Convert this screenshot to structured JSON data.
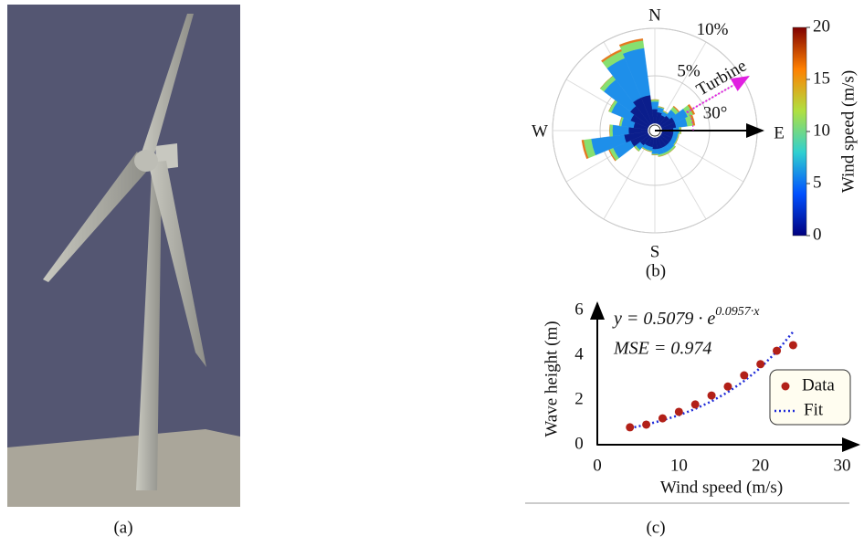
{
  "panel_labels": [
    "(a)",
    "(b)",
    "(c)"
  ],
  "chart_data": [
    {
      "type": "wind-rose",
      "compass": [
        "N",
        "E",
        "S",
        "W"
      ],
      "direction_degrees": [
        0,
        15,
        30,
        45,
        60,
        75,
        90,
        105,
        120,
        135,
        150,
        165,
        180,
        195,
        210,
        225,
        240,
        255,
        270,
        285,
        300,
        315,
        330,
        345
      ],
      "rlim": [
        0,
        10
      ],
      "rticks": [
        {
          "value": 5,
          "label": "5%"
        },
        {
          "value": 10,
          "label": "10%"
        }
      ],
      "series": [
        {
          "color": "#0b1e8c",
          "values": [
            1.5,
            1.2,
            1.0,
            1.2,
            1.5,
            1.5,
            1.2,
            1.2,
            1.2,
            1.2,
            1.2,
            1.2,
            1.2,
            1.0,
            1.0,
            1.2,
            2.0,
            2.5,
            2.0,
            1.5,
            2.0,
            2.5,
            3.0,
            3.0
          ]
        },
        {
          "color": "#1e8fea",
          "values": [
            0.8,
            0.5,
            0.4,
            0.8,
            1.5,
            1.2,
            0.6,
            0.5,
            0.5,
            0.6,
            0.6,
            0.6,
            0.5,
            0.4,
            0.4,
            0.6,
            2.0,
            3.5,
            1.7,
            1.3,
            2.2,
            3.5,
            4.5,
            5.0
          ]
        },
        {
          "color": "#86e070",
          "values": [
            0.2,
            0.1,
            0.1,
            0.4,
            0.6,
            0.6,
            0.2,
            0.1,
            0.1,
            0.2,
            0.2,
            0.2,
            0.1,
            0.1,
            0.1,
            0.2,
            0.4,
            0.8,
            0.3,
            0.2,
            0.3,
            0.5,
            0.8,
            0.8
          ]
        },
        {
          "color": "#e4781e",
          "values": [
            0,
            0,
            0,
            0.1,
            0.2,
            0.2,
            0,
            0,
            0,
            0,
            0,
            0,
            0,
            0,
            0,
            0,
            0.1,
            0.2,
            0,
            0,
            0,
            0,
            0.2,
            0.2
          ]
        }
      ],
      "turbine_label": "Turbine",
      "turbine_angle": {
        "value": 30,
        "label": "30°"
      },
      "colorbar": {
        "label": "Wind speed (m/s)",
        "lim": [
          0,
          20
        ],
        "ticks": [
          0,
          5,
          10,
          15,
          20
        ],
        "colors": [
          "#00007f",
          "#0050ff",
          "#30d0d0",
          "#b0e040",
          "#ff8000",
          "#7f0000"
        ]
      }
    },
    {
      "type": "scatter",
      "equation": "y = 0.5079 · e",
      "equation_exponent": "0.0957·x",
      "mse": "MSE = 0.974",
      "xlabel": "Wind speed (m/s)",
      "ylabel": "Wave height (m)",
      "xlim": [
        0,
        30
      ],
      "ylim": [
        0,
        6
      ],
      "xticks": [
        0,
        10,
        20,
        30
      ],
      "yticks": [
        0,
        2,
        4,
        6
      ],
      "series": [
        {
          "name": "Data",
          "color": "#b22018",
          "x": [
            4,
            6,
            8,
            10,
            12,
            14,
            16,
            18,
            20,
            22,
            24
          ],
          "values": [
            0.78,
            0.9,
            1.18,
            1.47,
            1.8,
            2.2,
            2.6,
            3.1,
            3.6,
            4.2,
            4.45
          ]
        },
        {
          "name": "Fit",
          "color": "#1f2bd8",
          "x": [
            4,
            6,
            8,
            10,
            12,
            14,
            16,
            18,
            20,
            22,
            24
          ],
          "values": [
            0.74,
            0.9,
            1.09,
            1.32,
            1.6,
            1.94,
            2.35,
            2.85,
            3.44,
            4.17,
            5.05
          ]
        }
      ]
    }
  ]
}
